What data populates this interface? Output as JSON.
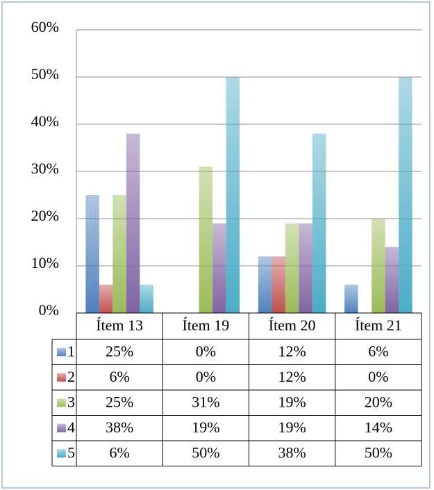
{
  "chart_data": {
    "type": "bar",
    "categories": [
      "Ítem 13",
      "Ítem 19",
      "Ítem 20",
      "Ítem 21"
    ],
    "series": [
      {
        "name": "1",
        "color": "#4f81bd",
        "values": [
          25,
          0,
          12,
          6
        ],
        "value_labels": [
          "25%",
          "0%",
          "12%",
          "6%"
        ]
      },
      {
        "name": "2",
        "color": "#c0504d",
        "values": [
          6,
          0,
          12,
          0
        ],
        "value_labels": [
          "6%",
          "0%",
          "12%",
          "0%"
        ]
      },
      {
        "name": "3",
        "color": "#9bbb59",
        "values": [
          25,
          31,
          19,
          20
        ],
        "value_labels": [
          "25%",
          "31%",
          "19%",
          "20%"
        ]
      },
      {
        "name": "4",
        "color": "#8064a2",
        "values": [
          38,
          19,
          19,
          14
        ],
        "value_labels": [
          "38%",
          "19%",
          "19%",
          "14%"
        ]
      },
      {
        "name": "5",
        "color": "#4bacc6",
        "values": [
          6,
          50,
          38,
          50
        ],
        "value_labels": [
          "6%",
          "50%",
          "38%",
          "50%"
        ]
      }
    ],
    "ylim": [
      0,
      60
    ],
    "yticks": [
      {
        "value": 0,
        "label": "0%"
      },
      {
        "value": 10,
        "label": "10%"
      },
      {
        "value": 20,
        "label": "20%"
      },
      {
        "value": 30,
        "label": "30%"
      },
      {
        "value": 40,
        "label": "40%"
      },
      {
        "value": 50,
        "label": "50%"
      },
      {
        "value": 60,
        "label": "60%"
      }
    ],
    "grid": true
  }
}
